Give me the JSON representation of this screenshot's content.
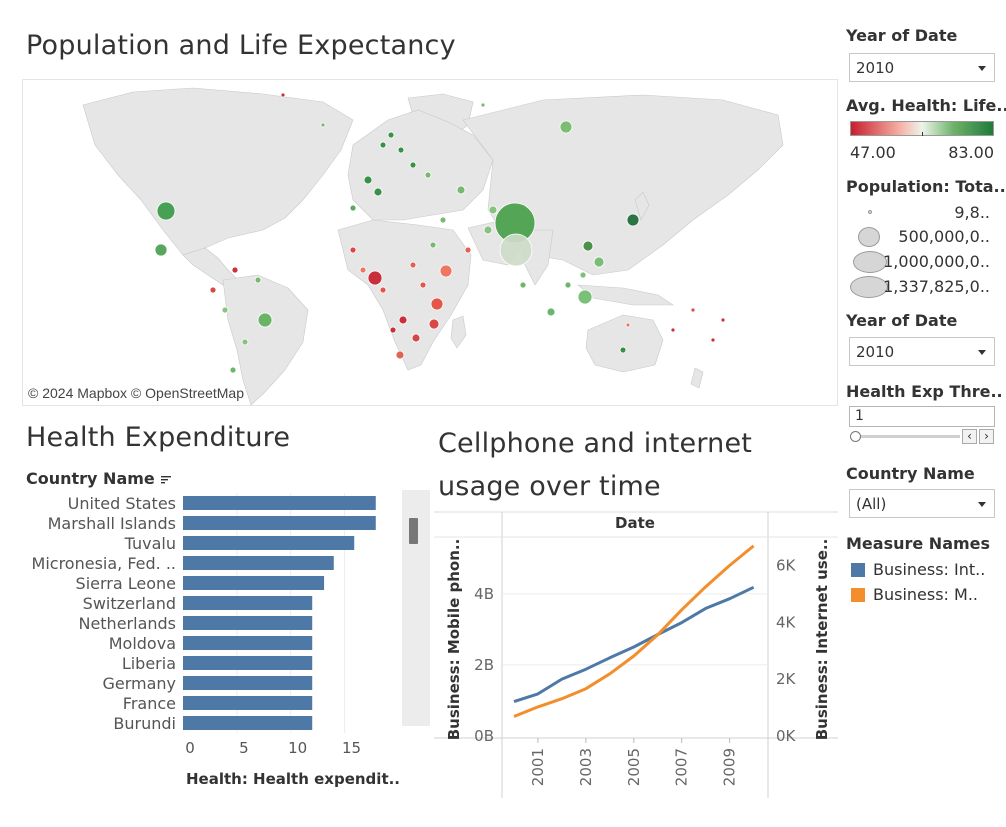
{
  "map": {
    "title": "Population and Life Expectancy",
    "credit": "© 2024 Mapbox © OpenStreetMap"
  },
  "health": {
    "title": "Health Expenditure",
    "column_header": "Country Name",
    "x_axis_label": "Health: Health expendit.."
  },
  "cell": {
    "title": "Cellphone and internet usage over time",
    "x_header": "Date",
    "left_axis_label": "Business: Mobile phon..",
    "right_axis_label": "Business: Internet use.."
  },
  "sidebar": {
    "year_label_1": "Year of Date",
    "year_value_1": "2010",
    "life_label": "Avg. Health: Life..",
    "life_min": "47.00",
    "life_max": "83.00",
    "pop_label": "Population: Tota..",
    "pop_items": [
      "9,8..",
      "500,000,0..",
      "1,000,000,0..",
      "1,337,825,0.."
    ],
    "year_label_2": "Year of Date",
    "year_value_2": "2010",
    "threshold_label": "Health Exp Thre..",
    "threshold_value": "1",
    "country_label": "Country Name",
    "country_value": "(All)",
    "measure_label": "Measure Names",
    "measure_items": [
      "Business: Int..",
      "Business: M.."
    ]
  },
  "colors": {
    "bar": "#4e79a7",
    "internet_line": "#4e79a7",
    "mobile_line": "#f28e2b",
    "life_low": "#c81e2e",
    "life_mid": "#f4f4f4",
    "life_high": "#1f7a3a",
    "land": "#e6e6e6"
  },
  "chart_data": [
    {
      "type": "bar",
      "orientation": "horizontal",
      "title": "Health Expenditure",
      "categories": [
        "United States",
        "Marshall Islands",
        "Tuvalu",
        "Micronesia, Fed. ..",
        "Sierra Leone",
        "Switzerland",
        "Netherlands",
        "Moldova",
        "Liberia",
        "Germany",
        "France",
        "Burundi"
      ],
      "values": [
        17.9,
        17.9,
        15.9,
        14.0,
        13.1,
        12.0,
        12.0,
        12.0,
        12.0,
        12.0,
        12.0,
        12.0
      ],
      "x_ticks": [
        "0",
        "5",
        "10",
        "15"
      ],
      "xlim": [
        0,
        19.5
      ],
      "xlabel": "Health: Health expendit.."
    },
    {
      "type": "line",
      "title": "Cellphone and internet usage over time",
      "x": [
        2000,
        2001,
        2002,
        2003,
        2004,
        2005,
        2006,
        2007,
        2008,
        2009,
        2010
      ],
      "x_ticks": [
        "2001",
        "2003",
        "2005",
        "2007",
        "2009"
      ],
      "series": [
        {
          "name": "Business: Int..",
          "axis": "right",
          "values": [
            1210,
            1480,
            2000,
            2350,
            2750,
            3130,
            3570,
            3990,
            4490,
            4830,
            5230
          ]
        },
        {
          "name": "Business: M..",
          "axis": "left",
          "values": [
            0.55,
            0.82,
            1.05,
            1.33,
            1.75,
            2.25,
            2.85,
            3.55,
            4.2,
            4.8,
            5.35
          ]
        }
      ],
      "left_axis": {
        "label": "Business: Mobile phon..",
        "ticks": [
          "0B",
          "2B",
          "4B"
        ],
        "range": [
          0,
          5.6
        ]
      },
      "right_axis": {
        "label": "Business: Internet use..",
        "ticks": [
          "0K",
          "2K",
          "4K",
          "6K"
        ],
        "range": [
          0,
          7000
        ]
      },
      "xlabel": "Date"
    }
  ]
}
